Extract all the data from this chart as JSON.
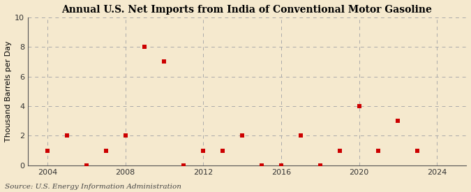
{
  "title": "Annual U.S. Net Imports from India of Conventional Motor Gasoline",
  "ylabel": "Thousand Barrels per Day",
  "source": "Source: U.S. Energy Information Administration",
  "years": [
    2004,
    2005,
    2006,
    2007,
    2008,
    2009,
    2010,
    2011,
    2012,
    2013,
    2014,
    2015,
    2016,
    2017,
    2018,
    2019,
    2020,
    2021,
    2022,
    2023
  ],
  "values": [
    1,
    2,
    0,
    1,
    2,
    8,
    7,
    0,
    1,
    1,
    2,
    0,
    0,
    2,
    0,
    1,
    4,
    1,
    3,
    1
  ],
  "marker_color": "#cc0000",
  "marker_size": 5,
  "bg_color": "#f5e9ce",
  "plot_bg_color": "#f5e9ce",
  "grid_color": "#aaaaaa",
  "xlim": [
    2003.0,
    2025.5
  ],
  "ylim": [
    0,
    10
  ],
  "xticks": [
    2004,
    2008,
    2012,
    2016,
    2020,
    2024
  ],
  "yticks": [
    0,
    2,
    4,
    6,
    8,
    10
  ],
  "title_fontsize": 10,
  "label_fontsize": 8,
  "tick_fontsize": 8,
  "source_fontsize": 7.5
}
